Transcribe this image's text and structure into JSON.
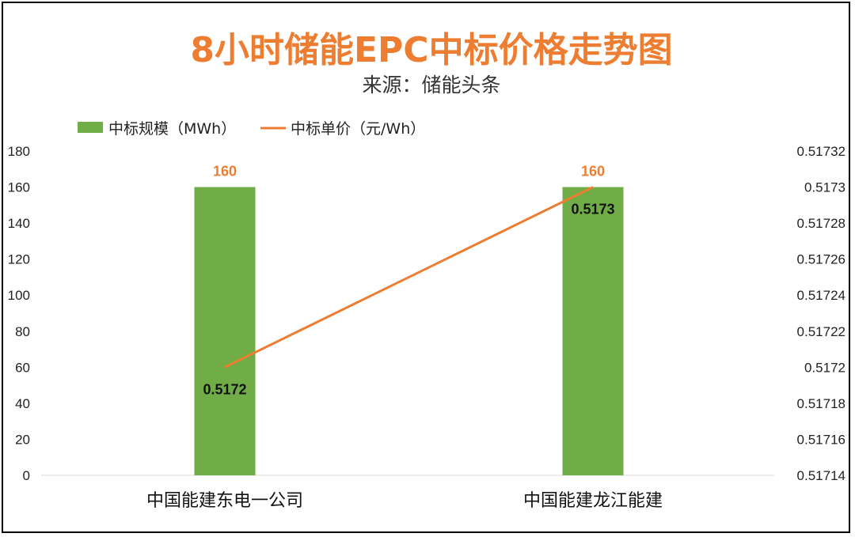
{
  "chart_data": {
    "type": "bar",
    "title": "8小时储能EPC中标价格走势图",
    "subtitle": "来源：储能头条",
    "categories": [
      "中国能建东电一公司",
      "中国能建龙江能建"
    ],
    "series": [
      {
        "name": "中标规模（MWh）",
        "type": "bar",
        "axis": "left",
        "values": [
          160,
          160
        ],
        "labels": [
          "160",
          "160"
        ],
        "color": "#70AD47"
      },
      {
        "name": "中标单价（元/Wh）",
        "type": "line",
        "axis": "right",
        "values": [
          0.5172,
          0.5173
        ],
        "labels": [
          "0.5172",
          "0.5173"
        ],
        "color": "#ED7D31"
      }
    ],
    "y_left": {
      "ylim": [
        0,
        180
      ],
      "ticks": [
        "0",
        "20",
        "40",
        "60",
        "80",
        "100",
        "120",
        "140",
        "160",
        "180"
      ]
    },
    "y_right": {
      "ylim": [
        0.51714,
        0.51732
      ],
      "ticks": [
        "0.51714",
        "0.51716",
        "0.51718",
        "0.5172",
        "0.51722",
        "0.51724",
        "0.51726",
        "0.51728",
        "0.5173",
        "0.51732"
      ]
    },
    "grid": false,
    "legend_position": "top-left",
    "bar_label_color": "#ED7D31"
  }
}
